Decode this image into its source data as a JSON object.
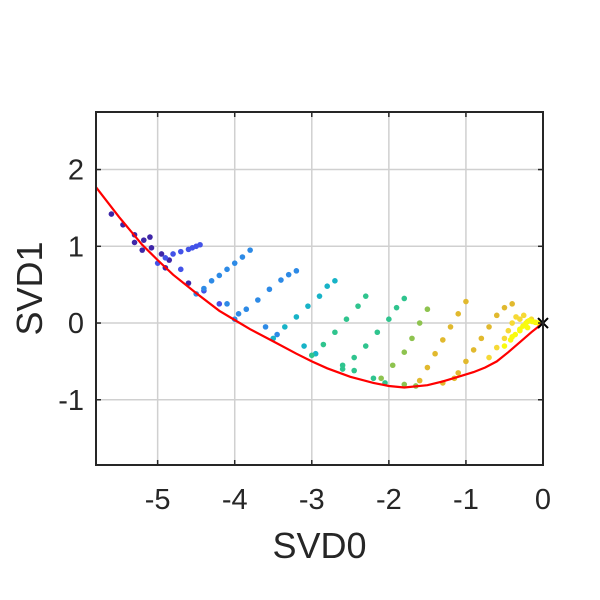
{
  "chart_data": {
    "type": "scatter",
    "title": "",
    "xlabel": "SVD0",
    "ylabel": "SVD1",
    "xlim": [
      -5.8,
      0
    ],
    "ylim": [
      -1.85,
      2.75
    ],
    "x_ticks": [
      -5,
      -4,
      -3,
      -2,
      -1,
      0
    ],
    "x_tick_labels": [
      "-5",
      "-4",
      "-3",
      "-2",
      "-1",
      "0"
    ],
    "y_ticks": [
      -1,
      0,
      1,
      2
    ],
    "y_tick_labels": [
      "-1",
      "0",
      "1",
      "2"
    ],
    "grid": true,
    "legend": "none",
    "colormap": [
      "#3e26a8",
      "#4353e8",
      "#2d8ae6",
      "#17b3c7",
      "#2fc48e",
      "#8ec34f",
      "#e1b92e",
      "#f6d936",
      "#f9fb0e"
    ],
    "curve_color": "#ff0000",
    "marker_color": "#000000",
    "curve": {
      "x": [
        -5.8,
        -5.5,
        -5.2,
        -5.0,
        -4.8,
        -4.5,
        -4.2,
        -4.0,
        -3.8,
        -3.5,
        -3.2,
        -3.0,
        -2.8,
        -2.5,
        -2.2,
        -2.0,
        -1.8,
        -1.5,
        -1.3,
        -1.1,
        -0.9,
        -0.75,
        -0.6,
        -0.45,
        -0.3,
        -0.15,
        0.0
      ],
      "y": [
        1.77,
        1.38,
        1.02,
        0.82,
        0.63,
        0.39,
        0.16,
        0.04,
        -0.08,
        -0.24,
        -0.4,
        -0.5,
        -0.59,
        -0.7,
        -0.78,
        -0.82,
        -0.84,
        -0.81,
        -0.76,
        -0.7,
        -0.64,
        -0.58,
        -0.5,
        -0.38,
        -0.25,
        -0.12,
        0.0
      ]
    },
    "marker": {
      "x": 0.0,
      "y": 0.0,
      "symbol": "x"
    },
    "series": [
      {
        "color_value": 0.05,
        "x": [
          -5.6,
          -5.45,
          -5.3,
          -5.18,
          -5.08,
          -4.95,
          -4.85,
          -5.1,
          -5.3,
          -5.2,
          -4.9,
          -4.6
        ],
        "y": [
          1.42,
          1.28,
          1.15,
          1.08,
          0.98,
          0.9,
          0.82,
          1.12,
          1.05,
          0.95,
          0.72,
          0.52
        ]
      },
      {
        "color_value": 0.15,
        "x": [
          -5.0,
          -4.9,
          -4.8,
          -4.7,
          -4.6,
          -4.55,
          -4.5,
          -4.45,
          -4.7,
          -4.4,
          -4.2
        ],
        "y": [
          0.78,
          0.85,
          0.9,
          0.93,
          0.96,
          0.98,
          1.0,
          1.02,
          0.7,
          0.42,
          0.25
        ]
      },
      {
        "color_value": 0.2,
        "x": [
          -4.5,
          -4.4,
          -4.3,
          -4.2,
          -4.1,
          -4.0,
          -3.9,
          -3.8,
          -4.1,
          -3.95
        ],
        "y": [
          0.38,
          0.45,
          0.55,
          0.62,
          0.7,
          0.78,
          0.86,
          0.95,
          0.25,
          0.12
        ]
      },
      {
        "color_value": 0.3,
        "x": [
          -4.0,
          -3.85,
          -3.7,
          -3.55,
          -3.4,
          -3.3,
          -3.2,
          -3.6,
          -3.45
        ],
        "y": [
          0.05,
          0.18,
          0.3,
          0.44,
          0.56,
          0.63,
          0.68,
          -0.05,
          -0.15
        ]
      },
      {
        "color_value": 0.4,
        "x": [
          -3.5,
          -3.35,
          -3.2,
          -3.05,
          -2.9,
          -2.8,
          -2.7,
          -3.1,
          -2.95
        ],
        "y": [
          -0.2,
          -0.05,
          0.08,
          0.22,
          0.35,
          0.48,
          0.55,
          -0.3,
          -0.4
        ]
      },
      {
        "color_value": 0.5,
        "x": [
          -3.0,
          -2.85,
          -2.7,
          -2.55,
          -2.4,
          -2.3,
          -2.6,
          -2.45
        ],
        "y": [
          -0.42,
          -0.28,
          -0.12,
          0.05,
          0.22,
          0.35,
          -0.55,
          -0.62
        ]
      },
      {
        "color_value": 0.55,
        "x": [
          -2.6,
          -2.45,
          -2.3,
          -2.15,
          -2.0,
          -1.9,
          -1.8,
          -2.2,
          -2.05
        ],
        "y": [
          -0.6,
          -0.45,
          -0.3,
          -0.12,
          0.05,
          0.2,
          0.32,
          -0.72,
          -0.78
        ]
      },
      {
        "color_value": 0.65,
        "x": [
          -2.1,
          -1.95,
          -1.8,
          -1.7,
          -1.6,
          -1.5,
          -1.8,
          -1.65
        ],
        "y": [
          -0.72,
          -0.55,
          -0.38,
          -0.2,
          0.0,
          0.18,
          -0.8,
          -0.82
        ]
      },
      {
        "color_value": 0.72,
        "x": [
          -1.6,
          -1.5,
          -1.4,
          -1.3,
          -1.2,
          -1.1,
          -1.0,
          -1.3,
          -1.15
        ],
        "y": [
          -0.75,
          -0.58,
          -0.4,
          -0.22,
          -0.05,
          0.12,
          0.28,
          -0.78,
          -0.72
        ]
      },
      {
        "color_value": 0.8,
        "x": [
          -1.1,
          -1.0,
          -0.9,
          -0.8,
          -0.7,
          -0.6,
          -0.5,
          -0.4
        ],
        "y": [
          -0.65,
          -0.5,
          -0.35,
          -0.2,
          -0.05,
          0.1,
          0.2,
          0.25
        ]
      },
      {
        "color_value": 0.9,
        "x": [
          -0.7,
          -0.6,
          -0.5,
          -0.45,
          -0.4,
          -0.35,
          -0.3,
          -0.25,
          -0.2,
          -0.15,
          -0.1,
          -0.05
        ],
        "y": [
          -0.45,
          -0.32,
          -0.2,
          -0.1,
          0.0,
          0.08,
          0.05,
          0.1,
          0.02,
          0.05,
          0.01,
          0.0
        ]
      },
      {
        "color_value": 0.98,
        "x": [
          -0.5,
          -0.42,
          -0.36,
          -0.3,
          -0.26,
          -0.22,
          -0.18,
          -0.14,
          -0.1,
          -0.06,
          -0.4,
          -0.3,
          -0.2
        ],
        "y": [
          -0.3,
          -0.22,
          -0.15,
          -0.08,
          -0.04,
          0.0,
          0.03,
          0.02,
          0.01,
          0.0,
          -0.18,
          -0.1,
          -0.06
        ]
      }
    ]
  }
}
